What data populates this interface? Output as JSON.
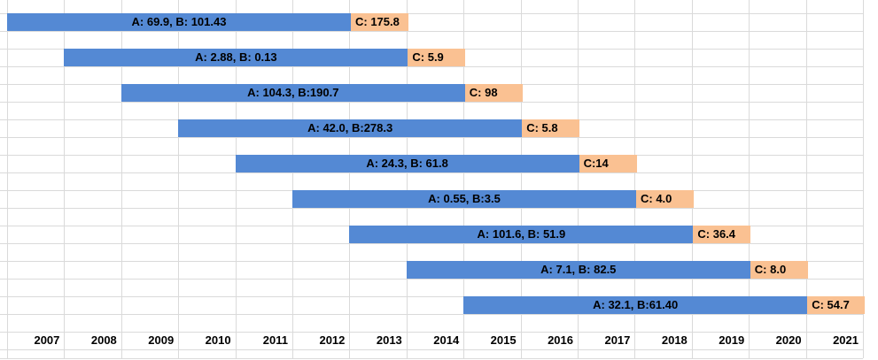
{
  "chart_data": {
    "type": "bar",
    "variant": "horizontal-stacked-gantt",
    "title": "",
    "xlabel": "",
    "ylabel": "",
    "grid": true,
    "legend": false,
    "x_ticks": [
      "2007",
      "2008",
      "2009",
      "2010",
      "2011",
      "2012",
      "2013",
      "2014",
      "2015",
      "2016",
      "2017",
      "2018",
      "2019",
      "2020",
      "2021"
    ],
    "x_range_years": [
      2006.2,
      2021.5
    ],
    "colors": {
      "blue_segment": "#5489D4",
      "orange_segment": "#FAC192",
      "gridline": "#DADADA",
      "label_text": "#000000"
    },
    "bars": [
      {
        "blue_label": "A: 69.9, B: 101.43",
        "orange_label": "C: 175.8",
        "A": 69.9,
        "B": 101.43,
        "C": 175.8,
        "start_year": 2006.2,
        "blue_end_year": 2012.3,
        "end_year": 2013.3
      },
      {
        "blue_label": "A: 2.88, B: 0.13",
        "orange_label": "C: 5.9",
        "A": 2.88,
        "B": 0.13,
        "C": 5.9,
        "start_year": 2007.2,
        "blue_end_year": 2013.3,
        "end_year": 2014.3
      },
      {
        "blue_label": "A: 104.3, B:190.7",
        "orange_label": "C: 98",
        "A": 104.3,
        "B": 190.7,
        "C": 98,
        "start_year": 2008.2,
        "blue_end_year": 2014.3,
        "end_year": 2015.3
      },
      {
        "blue_label": "A: 42.0, B:278.3",
        "orange_label": "C: 5.8",
        "A": 42.0,
        "B": 278.3,
        "C": 5.8,
        "start_year": 2009.2,
        "blue_end_year": 2015.3,
        "end_year": 2016.3
      },
      {
        "blue_label": "A: 24.3, B: 61.8",
        "orange_label": "C:14",
        "A": 24.3,
        "B": 61.8,
        "C": 14,
        "start_year": 2010.2,
        "blue_end_year": 2016.3,
        "end_year": 2017.3
      },
      {
        "blue_label": "A: 0.55, B:3.5",
        "orange_label": "C: 4.0",
        "A": 0.55,
        "B": 3.5,
        "C": 4.0,
        "start_year": 2011.2,
        "blue_end_year": 2017.3,
        "end_year": 2018.3
      },
      {
        "blue_label": "A: 101.6, B: 51.9",
        "orange_label": "C: 36.4",
        "A": 101.6,
        "B": 51.9,
        "C": 36.4,
        "start_year": 2012.2,
        "blue_end_year": 2018.3,
        "end_year": 2019.3
      },
      {
        "blue_label": "A: 7.1, B: 82.5",
        "orange_label": "C: 8.0",
        "A": 7.1,
        "B": 82.5,
        "C": 8.0,
        "start_year": 2013.2,
        "blue_end_year": 2019.3,
        "end_year": 2020.3
      },
      {
        "blue_label": "A: 32.1, B:61.40",
        "orange_label": "C: 54.7",
        "A": 32.1,
        "B": 61.4,
        "C": 54.7,
        "start_year": 2014.2,
        "blue_end_year": 2020.3,
        "end_year": 2021.3
      }
    ]
  }
}
